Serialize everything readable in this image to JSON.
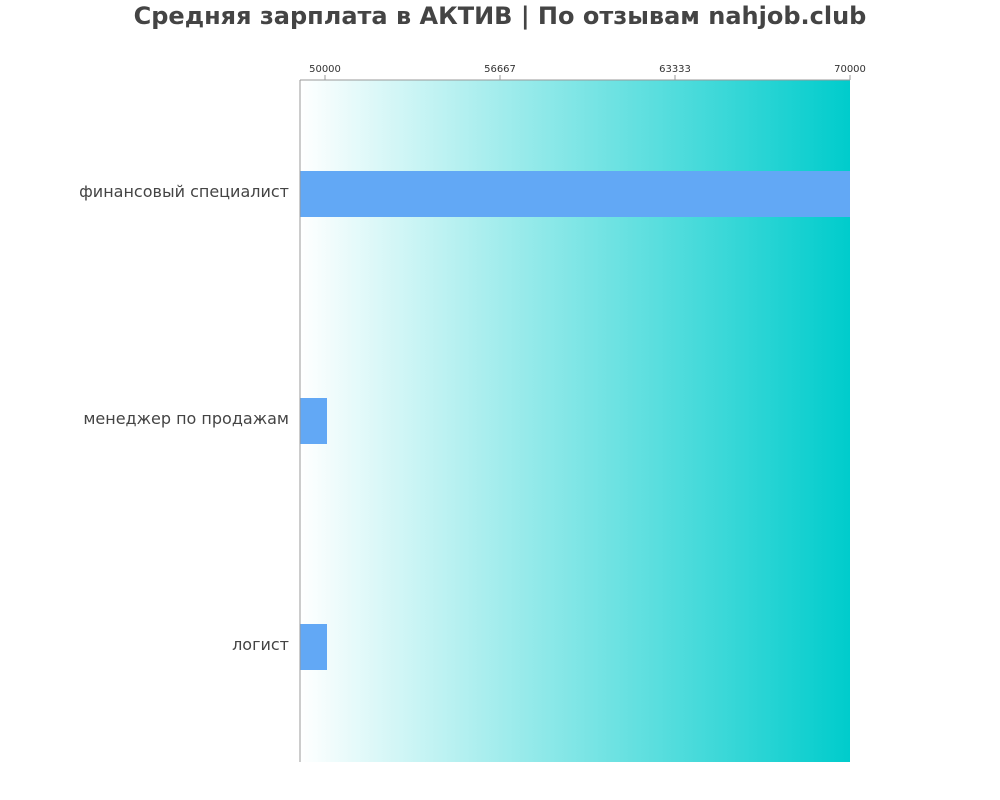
{
  "chart_data": {
    "type": "bar",
    "orientation": "horizontal",
    "title": "Средняя зарплата в АКТИВ | По отзывам nahjob.club",
    "xlabel": "",
    "ylabel": "",
    "categories": [
      "финансовый специалист",
      "менеджер по продажам",
      "логист"
    ],
    "values": [
      70000,
      50000,
      50000
    ],
    "xlim": [
      50000,
      70000
    ],
    "xticks": [
      "50000",
      "56667",
      "63333",
      "70000"
    ],
    "x_axis_position": "top",
    "grid": false,
    "legend": "none",
    "bar_color": "#62a8f5",
    "background_gradient": [
      "#ffffff",
      "#00cccc"
    ]
  }
}
